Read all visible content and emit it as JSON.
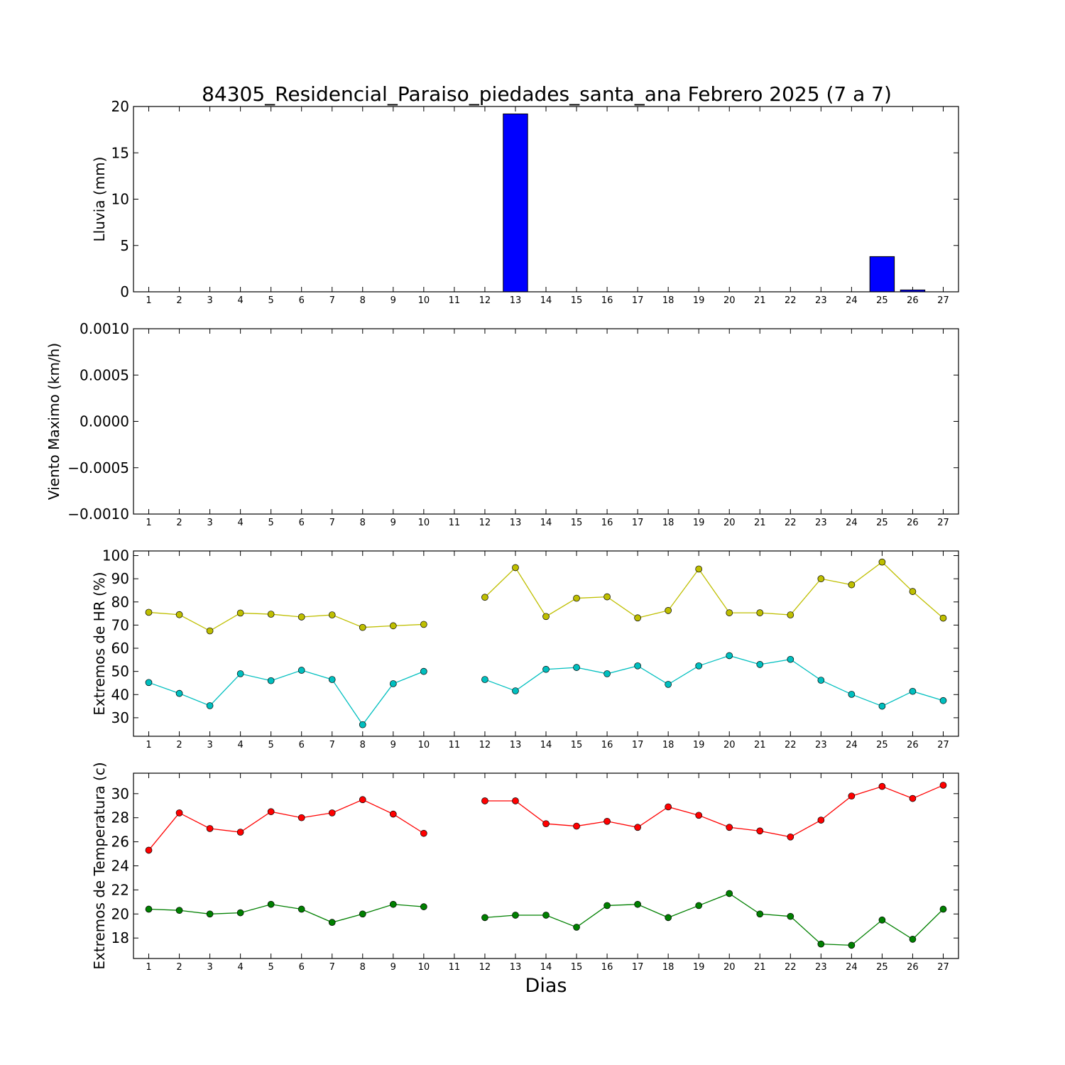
{
  "title": "84305_Residencial_Paraiso_piedades_santa_ana Febrero 2025  (7 a 7)",
  "xlabel": "Dias",
  "days": [
    1,
    2,
    3,
    4,
    5,
    6,
    7,
    8,
    9,
    10,
    11,
    12,
    13,
    14,
    15,
    16,
    17,
    18,
    19,
    20,
    21,
    22,
    23,
    24,
    25,
    26,
    27
  ],
  "colors": {
    "rain": "#0000ff",
    "hr_max": "#bfbf00",
    "hr_min": "#00bfbf",
    "temp_max": "#ff0000",
    "temp_min": "#008000"
  },
  "chart_data": [
    {
      "type": "bar",
      "ylabel": "Lluvia (mm)",
      "ylim": [
        0,
        20
      ],
      "yticks": [
        0,
        5,
        10,
        15,
        20
      ],
      "ytick_labels": [
        "0",
        "5",
        "10",
        "15",
        "20"
      ],
      "categories": [
        1,
        2,
        3,
        4,
        5,
        6,
        7,
        8,
        9,
        10,
        11,
        12,
        13,
        14,
        15,
        16,
        17,
        18,
        19,
        20,
        21,
        22,
        23,
        24,
        25,
        26,
        27
      ],
      "series": [
        {
          "values": [
            0,
            0,
            0,
            0,
            0,
            0,
            0,
            0,
            0,
            0,
            0,
            0,
            19.2,
            0,
            0,
            0,
            0,
            0,
            0,
            0,
            0,
            0,
            0,
            0,
            3.8,
            0.2,
            0
          ]
        }
      ]
    },
    {
      "type": "line",
      "ylabel": "Viento Maximo (km/h)",
      "ylim": [
        -0.001,
        0.001
      ],
      "yticks": [
        -0.001,
        -0.0005,
        0,
        0.0005,
        0.001
      ],
      "ytick_labels": [
        "−0.0010",
        "−0.0005",
        "0.0000",
        "0.0005",
        "0.0010"
      ],
      "series": []
    },
    {
      "type": "line",
      "ylabel": "Extremos de HR (%)",
      "ylim": [
        22,
        102
      ],
      "yticks": [
        30,
        40,
        50,
        60,
        70,
        80,
        90,
        100
      ],
      "ytick_labels": [
        "30",
        "40",
        "50",
        "60",
        "70",
        "80",
        "90",
        "100"
      ],
      "x": [
        1,
        2,
        3,
        4,
        5,
        6,
        7,
        8,
        9,
        10,
        11,
        12,
        13,
        14,
        15,
        16,
        17,
        18,
        19,
        20,
        21,
        22,
        23,
        24,
        25,
        26,
        27
      ],
      "series": [
        {
          "values": [
            75.5,
            74.5,
            67.5,
            75.2,
            74.7,
            73.5,
            74.4,
            69,
            69.7,
            70.3,
            null,
            82,
            94.8,
            73.7,
            81.6,
            82.2,
            73.1,
            76.3,
            94.2,
            75.3,
            75.3,
            74.4,
            90,
            87.4,
            97.2,
            84.5,
            73
          ]
        },
        {
          "values": [
            45.2,
            40.5,
            35.2,
            49,
            46,
            50.5,
            46.5,
            27,
            44.7,
            50,
            null,
            46.5,
            41.6,
            50.9,
            51.7,
            49,
            52.4,
            44.4,
            52.4,
            56.8,
            53,
            55.2,
            46.2,
            40.1,
            35,
            41.4,
            37.4
          ]
        }
      ]
    },
    {
      "type": "line",
      "ylabel": "Extremos de Temperatura (c)",
      "ylim": [
        16.3,
        31.7
      ],
      "yticks": [
        18,
        20,
        22,
        24,
        26,
        28,
        30
      ],
      "ytick_labels": [
        "18",
        "20",
        "22",
        "24",
        "26",
        "28",
        "30"
      ],
      "x": [
        1,
        2,
        3,
        4,
        5,
        6,
        7,
        8,
        9,
        10,
        11,
        12,
        13,
        14,
        15,
        16,
        17,
        18,
        19,
        20,
        21,
        22,
        23,
        24,
        25,
        26,
        27
      ],
      "series": [
        {
          "values": [
            25.3,
            28.4,
            27.1,
            26.8,
            28.5,
            28,
            28.4,
            29.5,
            28.3,
            26.7,
            null,
            29.4,
            29.4,
            27.5,
            27.3,
            27.7,
            27.2,
            28.9,
            28.2,
            27.2,
            26.9,
            26.4,
            27.8,
            29.8,
            30.6,
            29.6,
            30.7
          ]
        },
        {
          "values": [
            20.4,
            20.3,
            20,
            20.1,
            20.8,
            20.4,
            19.3,
            20,
            20.8,
            20.6,
            null,
            19.7,
            19.9,
            19.9,
            18.9,
            20.7,
            20.8,
            19.7,
            20.7,
            21.7,
            20,
            19.8,
            17.5,
            17.4,
            19.5,
            17.9,
            20.4
          ]
        }
      ]
    }
  ]
}
